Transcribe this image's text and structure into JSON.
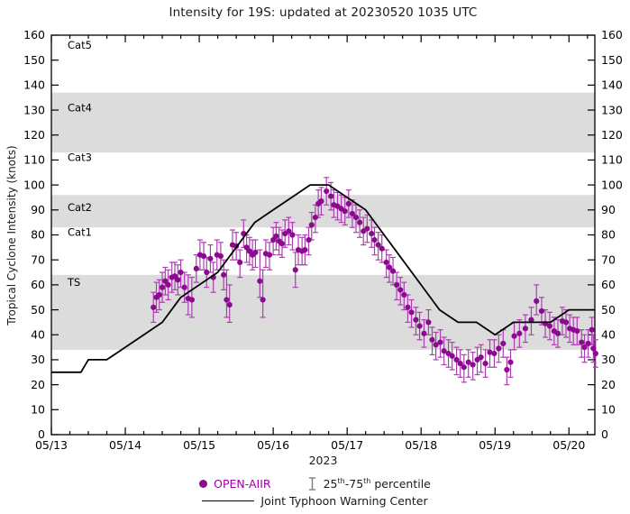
{
  "accent_colors": {
    "scatter_dot": "#8b0a8f",
    "error_bar": "#ab3fb0",
    "legend_text": "#a100a8",
    "band_gray": "#dcdcdc",
    "jtwc_line": "#000000"
  },
  "header": {
    "title": "Intensity for 19S: updated at 20230520 1035 UTC"
  },
  "chart_data": {
    "type": "scatter",
    "title": "Intensity for 19S: updated at 20230520 1035 UTC",
    "ylabel": "Tropical Cyclone Intensity (knots)",
    "xlabel": "2023",
    "ylim": [
      0,
      160
    ],
    "ytick_step": 10,
    "x_range_days": [
      0,
      7.35
    ],
    "x_major_tick_labels": [
      "05/13",
      "05/14",
      "05/15",
      "05/16",
      "05/17",
      "05/18",
      "05/19",
      "05/20"
    ],
    "x_minor_step_days": 0.25,
    "grid": false,
    "legend_position": "below",
    "shaded_bands": [
      {
        "label": "TS",
        "from": 34,
        "to": 64
      },
      {
        "label": "Cat2",
        "from": 83,
        "to": 96
      },
      {
        "label": "Cat4",
        "from": 113,
        "to": 137
      }
    ],
    "category_labels": [
      {
        "text": "Cat5",
        "v": 156
      },
      {
        "text": "Cat4",
        "v": 131
      },
      {
        "text": "Cat3",
        "v": 111
      },
      {
        "text": "Cat2",
        "v": 91
      },
      {
        "text": "Cat1",
        "v": 81
      },
      {
        "text": "TS",
        "v": 61
      }
    ],
    "series": [
      {
        "name": "OPEN-AIIR",
        "type": "scatter_with_errorbars",
        "color": "#8b0a8f",
        "errorbar_color": "#ab3fb0",
        "note": "points are [days_since_0513_00utc, knots, p25, p75]",
        "points": [
          [
            1.38,
            51,
            45,
            57
          ],
          [
            1.42,
            55,
            49,
            61
          ],
          [
            1.46,
            56,
            50,
            62
          ],
          [
            1.5,
            59,
            53,
            65
          ],
          [
            1.54,
            61.5,
            56,
            67
          ],
          [
            1.58,
            60,
            54,
            66
          ],
          [
            1.63,
            63,
            57,
            69
          ],
          [
            1.67,
            63.5,
            58,
            69
          ],
          [
            1.71,
            62,
            56,
            68
          ],
          [
            1.75,
            65,
            59,
            70
          ],
          [
            1.8,
            59,
            53,
            65
          ],
          [
            1.85,
            54.5,
            48,
            64
          ],
          [
            1.9,
            54,
            47,
            63
          ],
          [
            1.96,
            66.5,
            61,
            72
          ],
          [
            2.01,
            72,
            66,
            78
          ],
          [
            2.06,
            71.5,
            66,
            77
          ],
          [
            2.1,
            65,
            59,
            71
          ],
          [
            2.15,
            70.5,
            65,
            76
          ],
          [
            2.19,
            63,
            57,
            69
          ],
          [
            2.24,
            72,
            66,
            78
          ],
          [
            2.29,
            71.5,
            66,
            77
          ],
          [
            2.33,
            64,
            58,
            70
          ],
          [
            2.37,
            54,
            47,
            66
          ],
          [
            2.41,
            52,
            45,
            60
          ],
          [
            2.45,
            76,
            70,
            82
          ],
          [
            2.5,
            75.5,
            70,
            81
          ],
          [
            2.55,
            69,
            63,
            74
          ],
          [
            2.6,
            80.5,
            75,
            86
          ],
          [
            2.64,
            75,
            69,
            80
          ],
          [
            2.68,
            73.5,
            68,
            79
          ],
          [
            2.72,
            72,
            66,
            78
          ],
          [
            2.76,
            73,
            67,
            78
          ],
          [
            2.82,
            61.5,
            55,
            74
          ],
          [
            2.86,
            54,
            47,
            66
          ],
          [
            2.9,
            72.5,
            67,
            78
          ],
          [
            2.95,
            72,
            66,
            77
          ],
          [
            3.0,
            78,
            72,
            83
          ],
          [
            3.04,
            79.5,
            74,
            85
          ],
          [
            3.08,
            77.5,
            72,
            83
          ],
          [
            3.12,
            76.5,
            71,
            82
          ],
          [
            3.16,
            80.5,
            75,
            86
          ],
          [
            3.21,
            81.5,
            76,
            87
          ],
          [
            3.26,
            80,
            74,
            85
          ],
          [
            3.3,
            66,
            59,
            73
          ],
          [
            3.34,
            74,
            68,
            80
          ],
          [
            3.39,
            73.5,
            68,
            79
          ],
          [
            3.43,
            74,
            68,
            80
          ],
          [
            3.48,
            78,
            72,
            83
          ],
          [
            3.52,
            84,
            78,
            89
          ],
          [
            3.57,
            87,
            81,
            92
          ],
          [
            3.61,
            92.5,
            87,
            98
          ],
          [
            3.65,
            93.5,
            88,
            99
          ],
          [
            3.72,
            97.5,
            92,
            103
          ],
          [
            3.78,
            95.5,
            90,
            101
          ],
          [
            3.82,
            92,
            87,
            98
          ],
          [
            3.87,
            91.5,
            86,
            97
          ],
          [
            3.92,
            90.5,
            85,
            96
          ],
          [
            3.97,
            89.5,
            84,
            95
          ],
          [
            4.02,
            92.5,
            87,
            98
          ],
          [
            4.07,
            88.5,
            83,
            94
          ],
          [
            4.12,
            87,
            81,
            92
          ],
          [
            4.17,
            85,
            79,
            90
          ],
          [
            4.22,
            81.5,
            76,
            87
          ],
          [
            4.27,
            82.5,
            77,
            88
          ],
          [
            4.33,
            80.5,
            75,
            86
          ],
          [
            4.37,
            78,
            72,
            83
          ],
          [
            4.42,
            76,
            70,
            81
          ],
          [
            4.47,
            74.5,
            69,
            80
          ],
          [
            4.53,
            69,
            63,
            74
          ],
          [
            4.57,
            67,
            61,
            72
          ],
          [
            4.62,
            65.5,
            60,
            71
          ],
          [
            4.67,
            60,
            54,
            65
          ],
          [
            4.72,
            58,
            52,
            63
          ],
          [
            4.77,
            56,
            50,
            61
          ],
          [
            4.82,
            51,
            45,
            56
          ],
          [
            4.87,
            49,
            43,
            54
          ],
          [
            4.93,
            46,
            40,
            51
          ],
          [
            4.98,
            43.5,
            38,
            49
          ],
          [
            5.04,
            40.5,
            35,
            46
          ],
          [
            5.1,
            45,
            40,
            50
          ],
          [
            5.15,
            38,
            32,
            43
          ],
          [
            5.2,
            36,
            30,
            41
          ],
          [
            5.26,
            37,
            31,
            42
          ],
          [
            5.31,
            33.5,
            28,
            39
          ],
          [
            5.37,
            32.5,
            27,
            38
          ],
          [
            5.42,
            31.5,
            26,
            37
          ],
          [
            5.48,
            30,
            24,
            35
          ],
          [
            5.53,
            28.5,
            23,
            34
          ],
          [
            5.58,
            27,
            21,
            32
          ],
          [
            5.64,
            29,
            23,
            34
          ],
          [
            5.7,
            28,
            22,
            33
          ],
          [
            5.76,
            30,
            24,
            35
          ],
          [
            5.81,
            31,
            25,
            36
          ],
          [
            5.87,
            28.5,
            23,
            34
          ],
          [
            5.93,
            33,
            27,
            38
          ],
          [
            5.99,
            32.5,
            27,
            38
          ],
          [
            6.05,
            34.5,
            29,
            40
          ],
          [
            6.11,
            36.5,
            31,
            42
          ],
          [
            6.16,
            26,
            20,
            31
          ],
          [
            6.21,
            29,
            23,
            34
          ],
          [
            6.26,
            39.5,
            34,
            45
          ],
          [
            6.33,
            40.5,
            35,
            46
          ],
          [
            6.41,
            42.5,
            37,
            48
          ],
          [
            6.49,
            46,
            40,
            51
          ],
          [
            6.56,
            53.5,
            48,
            60
          ],
          [
            6.63,
            49.5,
            44,
            55
          ],
          [
            6.68,
            44.5,
            39,
            50
          ],
          [
            6.74,
            43.5,
            38,
            49
          ],
          [
            6.8,
            41.5,
            36,
            47
          ],
          [
            6.85,
            40.5,
            35,
            46
          ],
          [
            6.91,
            45.5,
            40,
            51
          ],
          [
            6.96,
            45,
            39,
            50
          ],
          [
            7.01,
            42.5,
            37,
            48
          ],
          [
            7.06,
            42,
            36,
            47
          ],
          [
            7.11,
            41.5,
            36,
            47
          ],
          [
            7.17,
            37,
            31,
            42
          ],
          [
            7.21,
            35,
            29,
            40
          ],
          [
            7.26,
            36.5,
            31,
            42
          ],
          [
            7.31,
            42,
            36,
            47
          ],
          [
            7.33,
            34.5,
            29,
            40
          ],
          [
            7.36,
            32.5,
            27,
            38
          ]
        ]
      },
      {
        "name": "Joint Typhoon Warning Center",
        "type": "line",
        "color": "#000000",
        "note": "points are [days_since_0513_00utc, knots]",
        "points": [
          [
            0,
            25
          ],
          [
            0.25,
            25
          ],
          [
            0.4,
            25
          ],
          [
            0.5,
            30
          ],
          [
            0.75,
            30
          ],
          [
            1,
            35
          ],
          [
            1.25,
            40
          ],
          [
            1.5,
            45
          ],
          [
            1.75,
            55
          ],
          [
            2,
            60
          ],
          [
            2.25,
            65
          ],
          [
            2.5,
            75
          ],
          [
            2.75,
            85
          ],
          [
            3,
            90
          ],
          [
            3.25,
            95
          ],
          [
            3.5,
            100
          ],
          [
            3.75,
            100
          ],
          [
            4,
            95
          ],
          [
            4.25,
            90
          ],
          [
            4.5,
            80
          ],
          [
            4.75,
            70
          ],
          [
            5,
            60
          ],
          [
            5.25,
            50
          ],
          [
            5.5,
            45
          ],
          [
            5.75,
            45
          ],
          [
            6,
            40
          ],
          [
            6.25,
            45
          ],
          [
            6.5,
            45
          ],
          [
            6.75,
            45
          ],
          [
            7,
            50
          ],
          [
            7.35,
            50
          ]
        ]
      }
    ],
    "legend": {
      "open_aiir_label": "OPEN-AIIR",
      "percentile": {
        "lo": "25",
        "sup1": "th",
        "dash": "-",
        "hi": "75",
        "sup2": "th",
        "rest": " percentile"
      },
      "jtwc_label": "Joint Typhoon Warning Center"
    }
  }
}
